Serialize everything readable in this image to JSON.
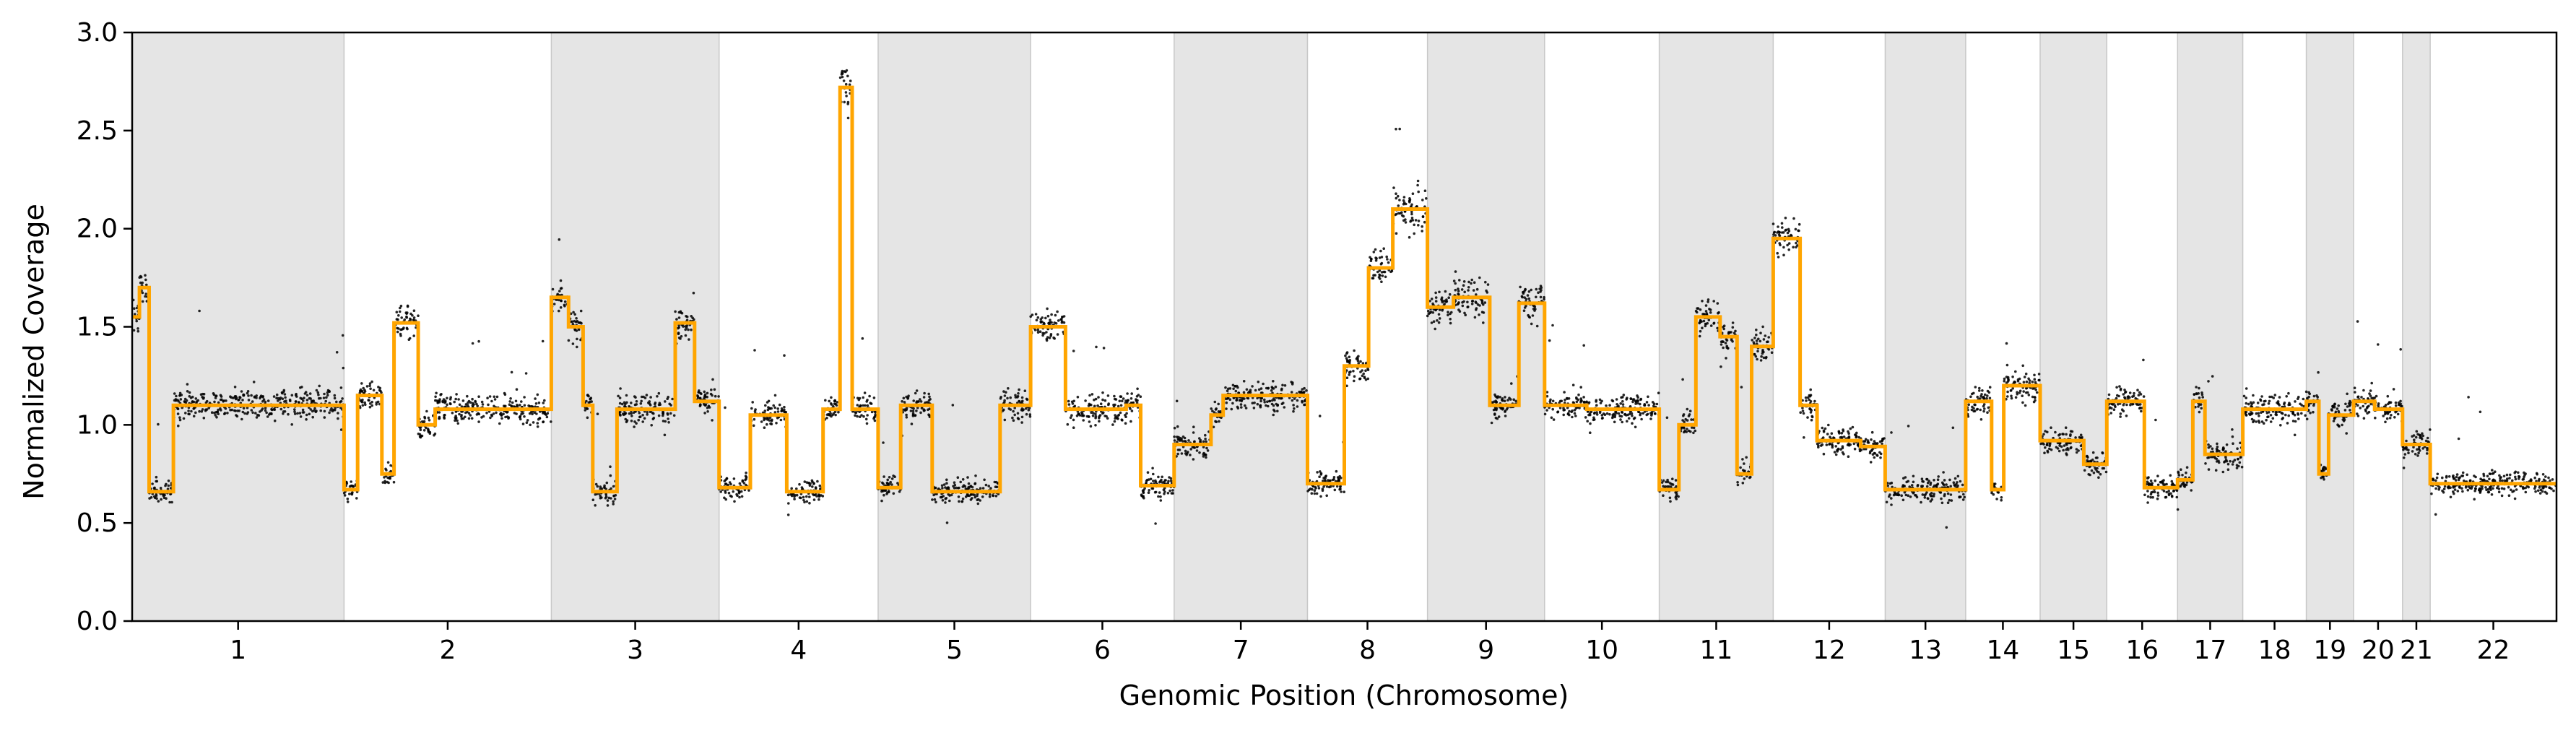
{
  "chart_data": {
    "type": "scatter",
    "xlabel": "Genomic Position (Chromosome)",
    "ylabel": "Normalized Coverage",
    "ylim": [
      0.0,
      3.0
    ],
    "yticks": [
      "0.0",
      "0.5",
      "1.0",
      "1.5",
      "2.0",
      "2.5",
      "3.0"
    ],
    "grid": false,
    "legend": "none",
    "colors": {
      "points": "#000000",
      "segments": "#ffa500",
      "shade": "#e5e5e5",
      "shade_edge": "#c8c8c8"
    },
    "chromosomes": [
      {
        "label": "1",
        "start": 0,
        "end": 0.0874,
        "shaded": true,
        "segments": [
          [
            0,
            0.003,
            1.55
          ],
          [
            0.003,
            0.007,
            1.7
          ],
          [
            0.007,
            0.017,
            0.66
          ],
          [
            0.017,
            0.04,
            1.1
          ],
          [
            0.04,
            0.06,
            1.1
          ],
          [
            0.06,
            0.0874,
            1.1
          ]
        ]
      },
      {
        "label": "2",
        "start": 0.0874,
        "end": 0.1729,
        "shaded": false,
        "segments": [
          [
            0.0874,
            0.093,
            0.67
          ],
          [
            0.093,
            0.103,
            1.15
          ],
          [
            0.103,
            0.108,
            0.75
          ],
          [
            0.108,
            0.118,
            1.52
          ],
          [
            0.118,
            0.125,
            1.0
          ],
          [
            0.125,
            0.1729,
            1.08
          ]
        ]
      },
      {
        "label": "3",
        "start": 0.1729,
        "end": 0.2421,
        "shaded": true,
        "segments": [
          [
            0.1729,
            0.18,
            1.65
          ],
          [
            0.18,
            0.186,
            1.5
          ],
          [
            0.186,
            0.19,
            1.1
          ],
          [
            0.19,
            0.2,
            0.66
          ],
          [
            0.2,
            0.224,
            1.08
          ],
          [
            0.224,
            0.232,
            1.52
          ],
          [
            0.232,
            0.2421,
            1.12
          ]
        ]
      },
      {
        "label": "4",
        "start": 0.2421,
        "end": 0.3077,
        "shaded": false,
        "segments": [
          [
            0.2421,
            0.255,
            0.68
          ],
          [
            0.255,
            0.27,
            1.05
          ],
          [
            0.27,
            0.285,
            0.66
          ],
          [
            0.285,
            0.292,
            1.08
          ],
          [
            0.292,
            0.297,
            2.72
          ],
          [
            0.297,
            0.3077,
            1.08
          ]
        ]
      },
      {
        "label": "5",
        "start": 0.3077,
        "end": 0.3706,
        "shaded": true,
        "segments": [
          [
            0.3077,
            0.317,
            0.68
          ],
          [
            0.317,
            0.33,
            1.1
          ],
          [
            0.33,
            0.358,
            0.66
          ],
          [
            0.358,
            0.3706,
            1.1
          ]
        ]
      },
      {
        "label": "6",
        "start": 0.3706,
        "end": 0.4298,
        "shaded": false,
        "segments": [
          [
            0.3706,
            0.385,
            1.5
          ],
          [
            0.385,
            0.41,
            1.08
          ],
          [
            0.41,
            0.416,
            1.1
          ],
          [
            0.416,
            0.4298,
            0.69
          ]
        ]
      },
      {
        "label": "7",
        "start": 0.4298,
        "end": 0.4848,
        "shaded": true,
        "segments": [
          [
            0.4298,
            0.445,
            0.9
          ],
          [
            0.445,
            0.45,
            1.05
          ],
          [
            0.45,
            0.4848,
            1.15
          ]
        ]
      },
      {
        "label": "8",
        "start": 0.4848,
        "end": 0.5343,
        "shaded": false,
        "segments": [
          [
            0.4848,
            0.5,
            0.7
          ],
          [
            0.5,
            0.51,
            1.3
          ],
          [
            0.51,
            0.52,
            1.8
          ],
          [
            0.52,
            0.5343,
            2.1
          ]
        ]
      },
      {
        "label": "9",
        "start": 0.5343,
        "end": 0.5826,
        "shaded": true,
        "segments": [
          [
            0.5343,
            0.545,
            1.6
          ],
          [
            0.545,
            0.56,
            1.65
          ],
          [
            0.56,
            0.572,
            1.1
          ],
          [
            0.572,
            0.5826,
            1.62
          ]
        ]
      },
      {
        "label": "10",
        "start": 0.5826,
        "end": 0.6299,
        "shaded": false,
        "segments": [
          [
            0.5826,
            0.6,
            1.1
          ],
          [
            0.6,
            0.6299,
            1.08
          ]
        ]
      },
      {
        "label": "11",
        "start": 0.6299,
        "end": 0.6769,
        "shaded": true,
        "segments": [
          [
            0.6299,
            0.638,
            0.67
          ],
          [
            0.638,
            0.645,
            1.0
          ],
          [
            0.645,
            0.655,
            1.55
          ],
          [
            0.655,
            0.662,
            1.45
          ],
          [
            0.662,
            0.668,
            0.75
          ],
          [
            0.668,
            0.6769,
            1.4
          ]
        ]
      },
      {
        "label": "12",
        "start": 0.6769,
        "end": 0.7231,
        "shaded": false,
        "segments": [
          [
            0.6769,
            0.688,
            1.95
          ],
          [
            0.688,
            0.695,
            1.1
          ],
          [
            0.695,
            0.713,
            0.92
          ],
          [
            0.713,
            0.7231,
            0.89
          ]
        ]
      },
      {
        "label": "13",
        "start": 0.7231,
        "end": 0.7563,
        "shaded": true,
        "segments": [
          [
            0.7231,
            0.742,
            0.67
          ],
          [
            0.742,
            0.7563,
            0.67
          ]
        ]
      },
      {
        "label": "14",
        "start": 0.7563,
        "end": 0.787,
        "shaded": false,
        "segments": [
          [
            0.7563,
            0.767,
            1.12
          ],
          [
            0.767,
            0.772,
            0.67
          ],
          [
            0.772,
            0.787,
            1.2
          ]
        ]
      },
      {
        "label": "15",
        "start": 0.787,
        "end": 0.8145,
        "shaded": true,
        "segments": [
          [
            0.787,
            0.805,
            0.92
          ],
          [
            0.805,
            0.8145,
            0.8
          ]
        ]
      },
      {
        "label": "16",
        "start": 0.8145,
        "end": 0.8437,
        "shaded": false,
        "segments": [
          [
            0.8145,
            0.83,
            1.12
          ],
          [
            0.83,
            0.8437,
            0.68
          ]
        ]
      },
      {
        "label": "17",
        "start": 0.8437,
        "end": 0.8706,
        "shaded": true,
        "segments": [
          [
            0.8437,
            0.85,
            0.72
          ],
          [
            0.85,
            0.855,
            1.12
          ],
          [
            0.855,
            0.8706,
            0.85
          ]
        ]
      },
      {
        "label": "18",
        "start": 0.8706,
        "end": 0.8968,
        "shaded": false,
        "segments": [
          [
            0.8706,
            0.8968,
            1.08
          ]
        ]
      },
      {
        "label": "19",
        "start": 0.8968,
        "end": 0.9163,
        "shaded": true,
        "segments": [
          [
            0.8968,
            0.902,
            1.12
          ],
          [
            0.902,
            0.906,
            0.75
          ],
          [
            0.906,
            0.9163,
            1.05
          ]
        ]
      },
      {
        "label": "20",
        "start": 0.9163,
        "end": 0.9365,
        "shaded": false,
        "segments": [
          [
            0.9163,
            0.925,
            1.12
          ],
          [
            0.925,
            0.9365,
            1.08
          ]
        ]
      },
      {
        "label": "21",
        "start": 0.9365,
        "end": 0.9479,
        "shaded": true,
        "segments": [
          [
            0.9365,
            0.9479,
            0.9
          ]
        ]
      },
      {
        "label": "22",
        "start": 0.9479,
        "end": 1.0,
        "shaded": false,
        "segments": [
          [
            0.9479,
            1.0,
            0.7
          ]
        ]
      }
    ]
  }
}
